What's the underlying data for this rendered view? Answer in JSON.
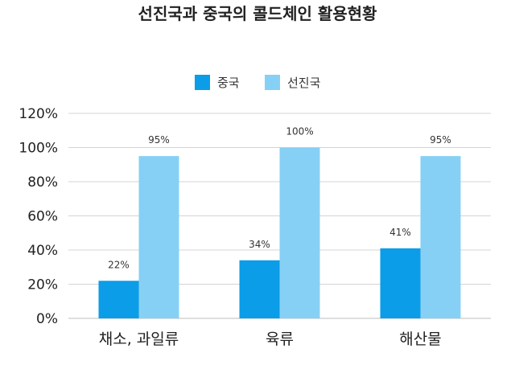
{
  "chart_data": {
    "type": "bar",
    "title": "선진국과 중국의 콜드체인 활용현황",
    "categories": [
      "채소, 과일류",
      "육류",
      "해산물"
    ],
    "series": [
      {
        "name": "중국",
        "values": [
          22,
          34,
          41
        ],
        "color": "#0B9DE8",
        "labels": [
          "22%",
          "34%",
          "41%"
        ]
      },
      {
        "name": "선진국",
        "values": [
          95,
          100,
          95
        ],
        "color": "#87D0F5",
        "labels": [
          "95%",
          "100%",
          "95%"
        ]
      }
    ],
    "yticks": [
      "0%",
      "20%",
      "40%",
      "60%",
      "80%",
      "100%",
      "120%"
    ],
    "ylim": [
      0,
      120
    ],
    "grid": true,
    "legend_position": "top-center"
  }
}
